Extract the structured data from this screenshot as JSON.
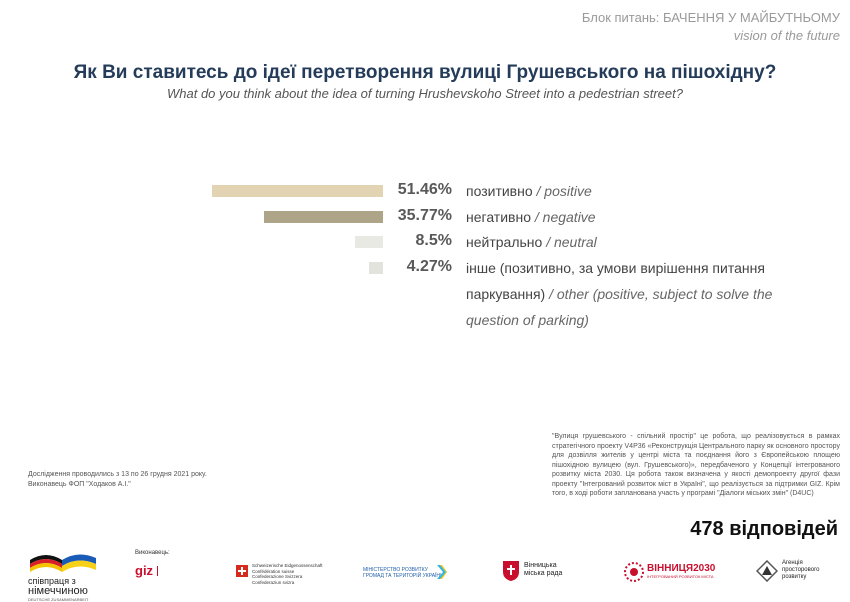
{
  "header": {
    "block_label": "Блок питань: БАЧЕННЯ У МАЙБУТНЬОМУ",
    "block_label_en": "vision of the future"
  },
  "title": "Як Ви ставитесь до ідеї перетворення вулиці Грушевського на пішохідну?",
  "subtitle": "What do you think about the idea of turning Hrushevskoho Street into a pedestrian street?",
  "chart_data": {
    "type": "bar",
    "orientation": "horizontal",
    "categories": [
      {
        "ua": "позитивно",
        "en": "positive"
      },
      {
        "ua": "негативно",
        "en": "negative"
      },
      {
        "ua": "нейтрально",
        "en": "neutral"
      },
      {
        "ua": "інше (позитивно, за умови вирішення питання паркування)",
        "en": "other (positive, subject to solve the question of parking)"
      }
    ],
    "values": [
      51.46,
      35.77,
      8.5,
      4.27
    ],
    "value_labels": [
      "51.46%",
      "35.77%",
      "8.5%",
      "4.27%"
    ],
    "colors": [
      "#e2d3b2",
      "#aea588",
      "#e9e9e4",
      "#e3e3de"
    ],
    "max": 51.46
  },
  "notes": {
    "left": [
      "Дослідження проводились з 13 по 26 грудня 2021 року.",
      "Виконавець ФОП \"Ходаков А.І.\""
    ],
    "right": "\"Вулиця грушевського - спільний простір\" це робота, що реалізовується в рамках стратегічного проекту V4P36 «Реконструкція Центрального парку як основного простору для дозвілля жителів у центрі міста та поєднання його з Європейською площею пішохідною вулицею (вул. Грушевського)», передбаченого у Концепції інтегрованого розвитку міста 2030. Ця робота також визначена у якості демопроекту другої фази проекту \"Інтегрований розвиток міст в Україні\", що реалізується за підтримки GIZ. Крім того, в ході роботи запланована участь у програмі \"Діалоги міських змін\" (D4UC)"
  },
  "responses": "478 відповідей",
  "logos": {
    "germany": {
      "line1": "співпраця з",
      "line2": "німеччиною",
      "line3": "DEUTSCHE ZUSAMMENARBEIT"
    },
    "giz": {
      "label": "Виконавець:",
      "name": "giz"
    },
    "swiss": {
      "lines": [
        "Schweizerische Eidgenossenschaft",
        "Confédération suisse",
        "Confederazione Svizzera",
        "Confederaziun svizra"
      ]
    },
    "ministry": {
      "line1": "МІНІСТЕРСТВО РОЗВИТКУ",
      "line2": "ГРОМАД ТА ТЕРИТОРІЙ УКРАЇНИ"
    },
    "vinnytsia_council": {
      "line1": "Вінницька",
      "line2": "міська рада"
    },
    "vinnytsia2030": {
      "name": "ВІННИЦЯ2030",
      "tag": "ІНТЕГРОВАНИЙ РОЗВИТОК МІСТА"
    },
    "agency": {
      "line1": "Агенція",
      "line2": "просторового",
      "line3": "розвитку"
    }
  }
}
